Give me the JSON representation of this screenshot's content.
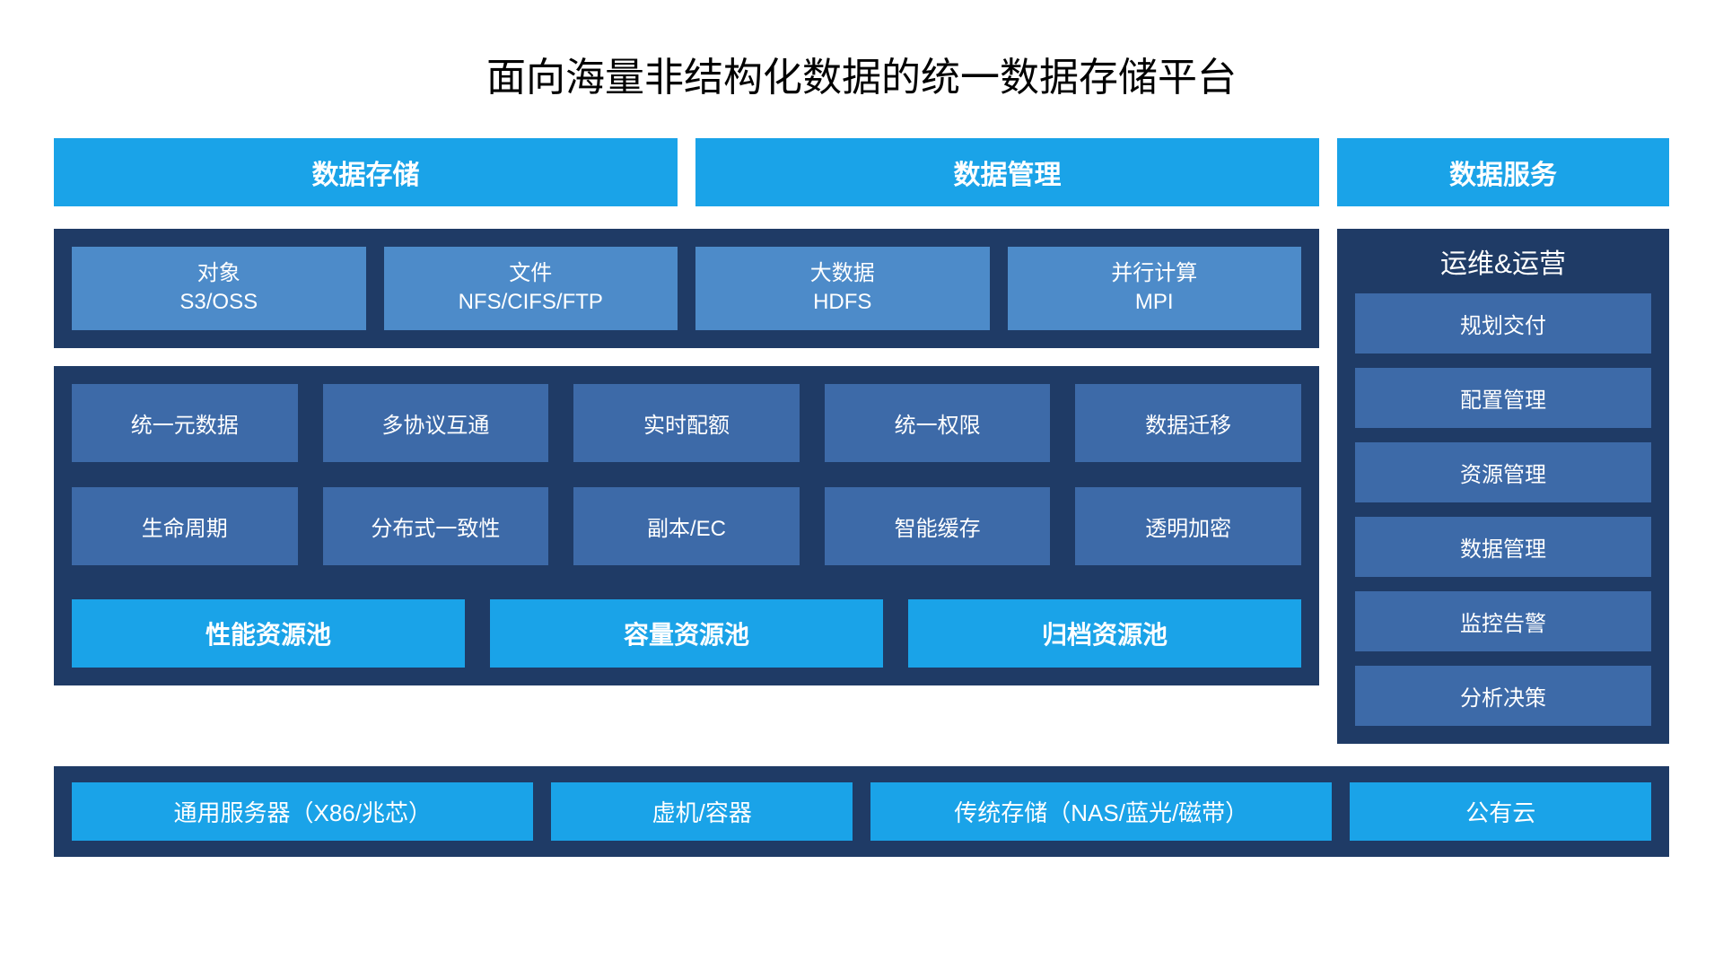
{
  "title": "面向海量非结构化数据的统一数据存储平台",
  "colors": {
    "bright_blue": "#1aa3e8",
    "dark_blue": "#1f3b66",
    "mid_blue": "#3d6aa8",
    "light_blue": "#4d8bc9",
    "white": "#ffffff",
    "black": "#000000"
  },
  "top_tabs": {
    "left": [
      "数据存储",
      "数据管理"
    ],
    "right": "数据服务"
  },
  "protocols": [
    {
      "line1": "对象",
      "line2": "S3/OSS"
    },
    {
      "line1": "文件",
      "line2": "NFS/CIFS/FTP"
    },
    {
      "line1": "大数据",
      "line2": "HDFS"
    },
    {
      "line1": "并行计算",
      "line2": "MPI"
    }
  ],
  "features_row1": [
    "统一元数据",
    "多协议互通",
    "实时配额",
    "统一权限",
    "数据迁移"
  ],
  "features_row2": [
    "生命周期",
    "分布式一致性",
    "副本/EC",
    "智能缓存",
    "透明加密"
  ],
  "pools": [
    "性能资源池",
    "容量资源池",
    "归档资源池"
  ],
  "side": {
    "title": "运维&运营",
    "items": [
      "规划交付",
      "配置管理",
      "资源管理",
      "数据管理",
      "监控告警",
      "分析决策"
    ]
  },
  "bottom": [
    {
      "label": "通用服务器（X86/兆芯）",
      "flex": 1.15
    },
    {
      "label": "虚机/容器",
      "flex": 0.75
    },
    {
      "label": "传统存储（NAS/蓝光/磁带）",
      "flex": 1.15
    },
    {
      "label": "公有云",
      "flex": 0.75
    }
  ]
}
